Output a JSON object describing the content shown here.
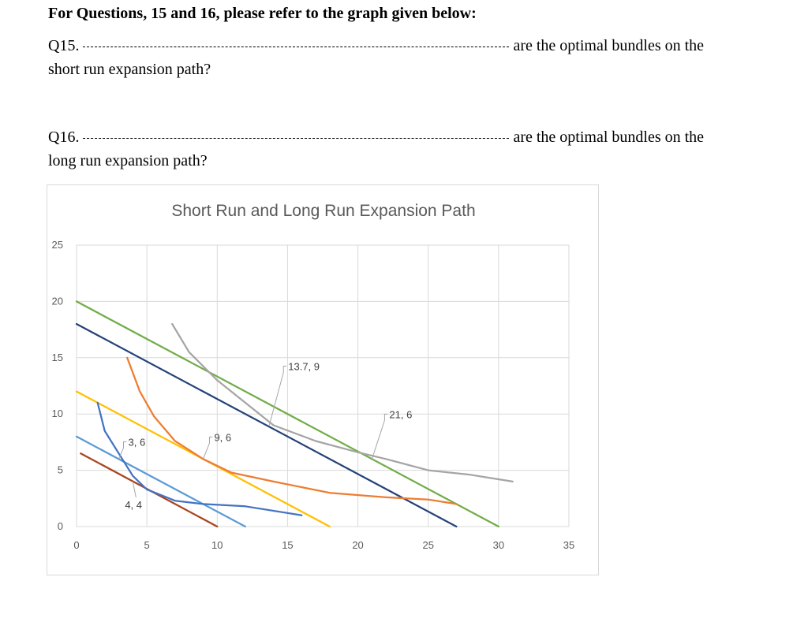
{
  "heading": "For Questions, 15 and 16, please refer to the graph given below:",
  "questions": [
    {
      "number": "Q15.",
      "tail": "are the optimal bundles on the",
      "continuation": "short run expansion path?"
    },
    {
      "number": "Q16.",
      "tail": "are the optimal bundles on the",
      "continuation": "long run expansion path?"
    }
  ],
  "chart_data": {
    "type": "line",
    "title": "Short Run and Long Run Expansion Path",
    "xlim": [
      0,
      35
    ],
    "ylim": [
      0,
      25
    ],
    "x_ticks": [
      "0",
      "5",
      "10",
      "15",
      "20",
      "25",
      "30",
      "35"
    ],
    "y_ticks": [
      "0",
      "5",
      "10",
      "15",
      "20",
      "25"
    ],
    "grid": true,
    "legend": "none",
    "series": [
      {
        "color": "#A9441C",
        "points": [
          [
            0.3,
            6.5
          ],
          [
            10,
            0
          ]
        ]
      },
      {
        "color": "#5B9BD5",
        "points": [
          [
            0,
            8
          ],
          [
            12,
            0
          ]
        ]
      },
      {
        "color": "#FFC000",
        "points": [
          [
            0,
            12
          ],
          [
            18,
            0
          ]
        ]
      },
      {
        "color": "#264478",
        "points": [
          [
            0,
            18
          ],
          [
            27,
            0
          ]
        ]
      },
      {
        "color": "#70AD47",
        "points": [
          [
            0,
            20
          ],
          [
            30,
            0
          ]
        ]
      },
      {
        "color": "#4472C4",
        "points": [
          [
            1.5,
            11
          ],
          [
            2,
            8.5
          ],
          [
            3,
            6.5
          ],
          [
            4,
            4.5
          ],
          [
            5,
            3.3
          ],
          [
            6,
            2.8
          ],
          [
            7,
            2.3
          ],
          [
            9,
            2
          ],
          [
            12,
            1.8
          ],
          [
            16,
            1
          ]
        ]
      },
      {
        "color": "#ED7D31",
        "points": [
          [
            3.6,
            15
          ],
          [
            4.5,
            12
          ],
          [
            5.5,
            9.8
          ],
          [
            7,
            7.6
          ],
          [
            9,
            6
          ],
          [
            11,
            4.8
          ],
          [
            14,
            4
          ],
          [
            18,
            3
          ],
          [
            22,
            2.6
          ],
          [
            25,
            2.4
          ],
          [
            27,
            2
          ]
        ]
      },
      {
        "color": "#A5A5A5",
        "points": [
          [
            6.8,
            18
          ],
          [
            8,
            15.5
          ],
          [
            10,
            13
          ],
          [
            12,
            11
          ],
          [
            14,
            9
          ],
          [
            17,
            7.6
          ],
          [
            20,
            6.6
          ],
          [
            22,
            6
          ],
          [
            25,
            5
          ],
          [
            28,
            4.6
          ],
          [
            31,
            4
          ]
        ]
      }
    ],
    "annotations": [
      {
        "label": "3, 6",
        "x": 3,
        "y": 6
      },
      {
        "label": "4, 4",
        "x": 4,
        "y": 4
      },
      {
        "label": "9, 6",
        "x": 9,
        "y": 6
      },
      {
        "label": "13.7, 9",
        "x": 13.7,
        "y": 9
      },
      {
        "label": "21, 6",
        "x": 21,
        "y": 6
      }
    ]
  }
}
